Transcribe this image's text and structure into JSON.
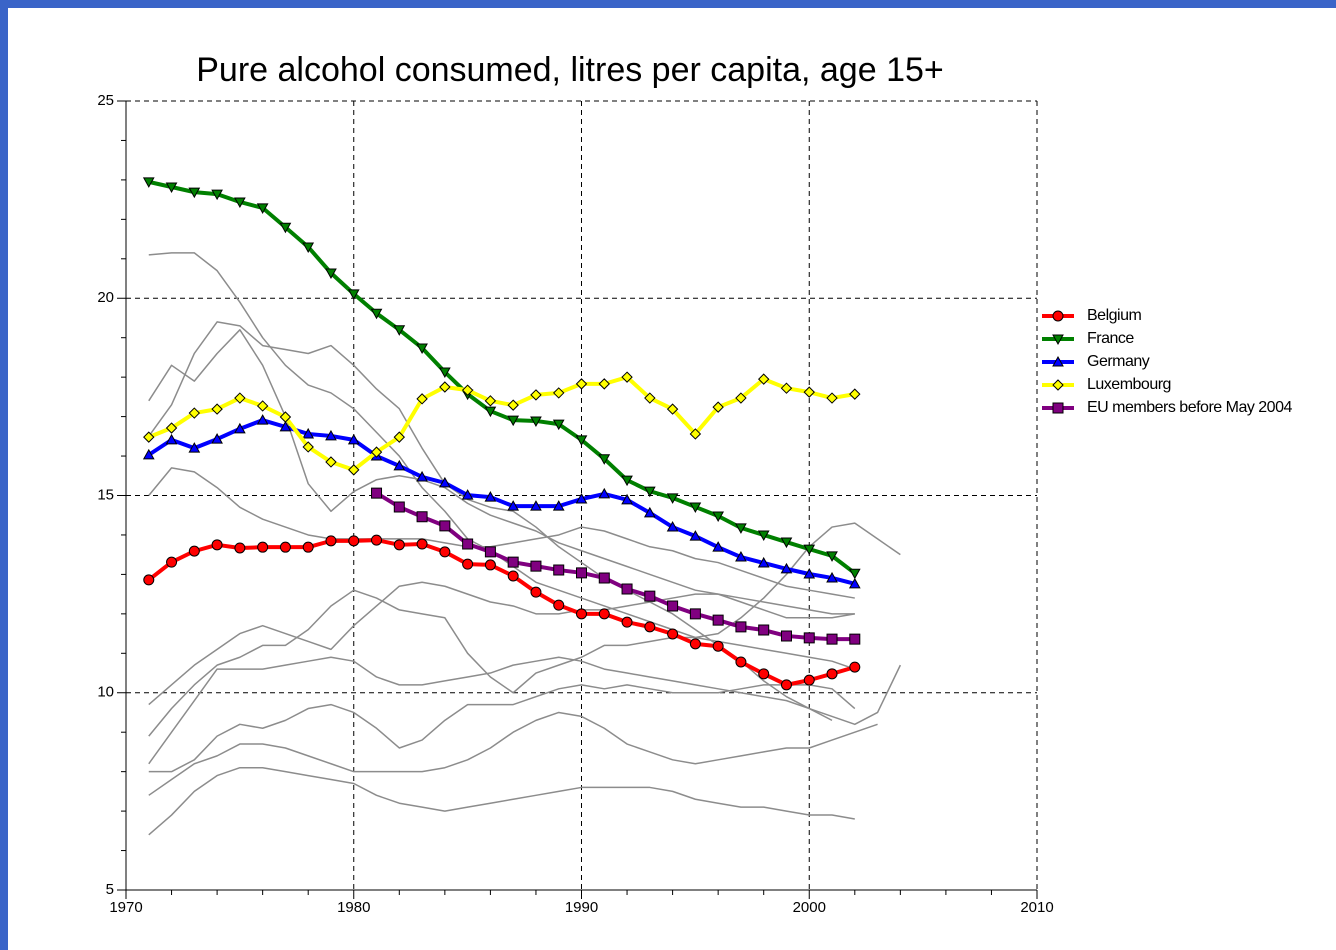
{
  "chart_data": {
    "type": "line",
    "title": "Pure alcohol consumed, litres per capita, age 15+",
    "x": [
      1971,
      1972,
      1973,
      1974,
      1975,
      1976,
      1977,
      1978,
      1979,
      1980,
      1981,
      1982,
      1983,
      1984,
      1985,
      1986,
      1987,
      1988,
      1989,
      1990,
      1991,
      1992,
      1993,
      1994,
      1995,
      1996,
      1997,
      1998,
      1999,
      2000,
      2001,
      2002,
      2003,
      2004
    ],
    "xlim": [
      1970,
      2010
    ],
    "xticks": [
      1970,
      1980,
      1990,
      2000,
      2010
    ],
    "ylim": [
      5,
      25
    ],
    "yticks": [
      5,
      10,
      15,
      20,
      25
    ],
    "grid": true,
    "legend": "right",
    "series": [
      {
        "color": "#8c8c8c",
        "values": [
          21.1,
          21.15,
          21.15,
          20.7,
          19.9,
          19.0,
          18.3,
          17.8,
          17.6,
          17.2,
          16.6,
          16.0,
          15.2,
          14.6,
          13.9,
          13.6,
          13.2,
          12.8,
          12.6,
          12.4,
          12.2,
          12.0,
          11.8,
          11.6,
          11.4,
          11.3,
          11.2,
          11.1,
          11.0,
          10.9,
          10.8,
          10.6,
          null,
          null
        ]
      },
      {
        "color": "#8c8c8c",
        "values": [
          17.4,
          18.3,
          17.9,
          18.6,
          19.2,
          18.3,
          17.0,
          15.3,
          14.6,
          15.1,
          15.4,
          15.5,
          15.4,
          15.2,
          14.8,
          14.5,
          14.3,
          14.1,
          13.8,
          13.6,
          13.4,
          13.2,
          13.0,
          12.8,
          12.6,
          12.5,
          12.4,
          12.3,
          12.2,
          12.1,
          12.0,
          12.0,
          null,
          null
        ]
      },
      {
        "color": "#8c8c8c",
        "values": [
          15.0,
          15.7,
          15.6,
          15.2,
          14.7,
          14.4,
          14.2,
          14.0,
          13.9,
          13.9,
          13.9,
          13.9,
          13.9,
          13.8,
          13.7,
          13.7,
          13.8,
          13.9,
          14.0,
          14.2,
          14.1,
          13.9,
          13.7,
          13.6,
          13.4,
          13.3,
          13.1,
          12.9,
          12.7,
          12.6,
          12.5,
          12.4,
          null,
          null
        ]
      },
      {
        "color": "#8c8c8c",
        "values": [
          16.5,
          17.3,
          18.6,
          19.4,
          19.3,
          18.8,
          18.7,
          18.6,
          18.8,
          18.3,
          17.7,
          17.2,
          16.2,
          15.3,
          14.9,
          14.7,
          14.6,
          14.2,
          13.7,
          13.3,
          12.9,
          12.6,
          12.3,
          12.0,
          11.6,
          11.2,
          10.8,
          10.3,
          9.9,
          9.6,
          9.3,
          null,
          null,
          null
        ]
      },
      {
        "color": "#8c8c8c",
        "values": [
          9.7,
          10.2,
          10.7,
          11.1,
          11.5,
          11.7,
          11.5,
          11.3,
          11.1,
          11.7,
          12.2,
          12.7,
          12.8,
          12.7,
          12.5,
          12.3,
          12.2,
          12.0,
          12.0,
          12.1,
          12.1,
          12.2,
          12.3,
          12.4,
          12.5,
          12.5,
          12.3,
          12.1,
          11.9,
          11.9,
          11.9,
          12.0,
          null,
          null
        ]
      },
      {
        "color": "#8c8c8c",
        "values": [
          8.9,
          9.6,
          10.2,
          10.7,
          10.9,
          11.2,
          11.2,
          11.6,
          12.2,
          12.6,
          12.4,
          12.1,
          12.0,
          11.9,
          11.0,
          10.4,
          10.0,
          10.5,
          10.7,
          10.9,
          11.2,
          11.2,
          11.3,
          11.4,
          11.4,
          11.5,
          11.9,
          12.4,
          13.0,
          13.7,
          14.2,
          14.3,
          13.9,
          13.5
        ]
      },
      {
        "color": "#8c8c8c",
        "values": [
          8.2,
          9.0,
          9.8,
          10.6,
          10.6,
          10.6,
          10.7,
          10.8,
          10.9,
          10.8,
          10.4,
          10.2,
          10.2,
          10.3,
          10.4,
          10.5,
          10.7,
          10.8,
          10.9,
          10.8,
          10.6,
          10.5,
          10.4,
          10.3,
          10.2,
          10.1,
          10.0,
          9.9,
          9.8,
          9.6,
          9.4,
          9.2,
          9.5,
          10.7
        ]
      },
      {
        "color": "#8c8c8c",
        "values": [
          8.0,
          8.0,
          8.3,
          8.9,
          9.2,
          9.1,
          9.3,
          9.6,
          9.7,
          9.5,
          9.1,
          8.6,
          8.8,
          9.3,
          9.7,
          9.7,
          9.7,
          9.9,
          10.1,
          10.2,
          10.1,
          10.2,
          10.1,
          10.0,
          10.0,
          10.0,
          10.1,
          10.2,
          10.2,
          10.2,
          10.1,
          9.6,
          null,
          null
        ]
      },
      {
        "color": "#8c8c8c",
        "values": [
          7.4,
          7.8,
          8.2,
          8.4,
          8.7,
          8.7,
          8.6,
          8.4,
          8.2,
          8.0,
          8.0,
          8.0,
          8.0,
          8.1,
          8.3,
          8.6,
          9.0,
          9.3,
          9.5,
          9.4,
          9.1,
          8.7,
          8.5,
          8.3,
          8.2,
          8.3,
          8.4,
          8.5,
          8.6,
          8.6,
          8.8,
          9.0,
          9.2,
          null
        ]
      },
      {
        "color": "#8c8c8c",
        "values": [
          6.4,
          6.9,
          7.5,
          7.9,
          8.1,
          8.1,
          8.0,
          7.9,
          7.8,
          7.7,
          7.4,
          7.2,
          7.1,
          7.0,
          7.1,
          7.2,
          7.3,
          7.4,
          7.5,
          7.6,
          7.6,
          7.6,
          7.6,
          7.5,
          7.3,
          7.2,
          7.1,
          7.1,
          7.0,
          6.9,
          6.9,
          6.8,
          null,
          null
        ]
      },
      {
        "name": "Belgium",
        "color": "#ff0000",
        "marker": "circle",
        "values": [
          12.86,
          13.31,
          13.59,
          13.75,
          13.67,
          13.69,
          13.69,
          13.69,
          13.85,
          13.85,
          13.87,
          13.75,
          13.77,
          13.57,
          13.26,
          13.24,
          12.96,
          12.55,
          12.22,
          12.0,
          12.0,
          11.79,
          11.67,
          11.49,
          11.24,
          11.18,
          10.78,
          10.48,
          10.2,
          10.32,
          10.48,
          10.65,
          null,
          null
        ]
      },
      {
        "name": "France",
        "color": "#008000",
        "marker": "triangle-down",
        "values": [
          22.95,
          22.82,
          22.69,
          22.64,
          22.44,
          22.29,
          21.8,
          21.3,
          20.64,
          20.11,
          19.62,
          19.2,
          18.74,
          18.13,
          17.57,
          17.14,
          16.91,
          16.89,
          16.81,
          16.41,
          15.93,
          15.39,
          15.11,
          14.94,
          14.71,
          14.48,
          14.18,
          14.0,
          13.82,
          13.64,
          13.47,
          13.03,
          null,
          null
        ]
      },
      {
        "name": "Germany",
        "color": "#0000ff",
        "marker": "triangle-up",
        "values": [
          16.03,
          16.41,
          16.2,
          16.43,
          16.69,
          16.91,
          16.74,
          16.56,
          16.51,
          16.41,
          16.0,
          15.75,
          15.47,
          15.32,
          15.01,
          14.96,
          14.73,
          14.73,
          14.73,
          14.91,
          15.04,
          14.89,
          14.56,
          14.2,
          13.97,
          13.69,
          13.44,
          13.29,
          13.14,
          13.01,
          12.91,
          12.76,
          null,
          null
        ]
      },
      {
        "name": "Luxembourg",
        "color": "#ffff00",
        "marker": "diamond",
        "values": [
          16.48,
          16.71,
          17.09,
          17.19,
          17.47,
          17.27,
          16.99,
          16.23,
          15.85,
          15.65,
          16.1,
          16.48,
          17.45,
          17.75,
          17.67,
          17.4,
          17.29,
          17.55,
          17.6,
          17.83,
          17.83,
          18.0,
          17.47,
          17.19,
          16.56,
          17.24,
          17.47,
          17.95,
          17.72,
          17.62,
          17.47,
          17.57,
          null,
          null
        ]
      },
      {
        "name": "EU members before May 2004",
        "color": "#800080",
        "marker": "square",
        "values": [
          null,
          null,
          null,
          null,
          null,
          null,
          null,
          null,
          null,
          null,
          15.06,
          14.71,
          14.46,
          14.23,
          13.77,
          13.57,
          13.31,
          13.21,
          13.11,
          13.04,
          12.91,
          12.63,
          12.45,
          12.2,
          12.0,
          11.84,
          11.67,
          11.59,
          11.44,
          11.39,
          11.36,
          11.36,
          null,
          null
        ]
      }
    ]
  }
}
